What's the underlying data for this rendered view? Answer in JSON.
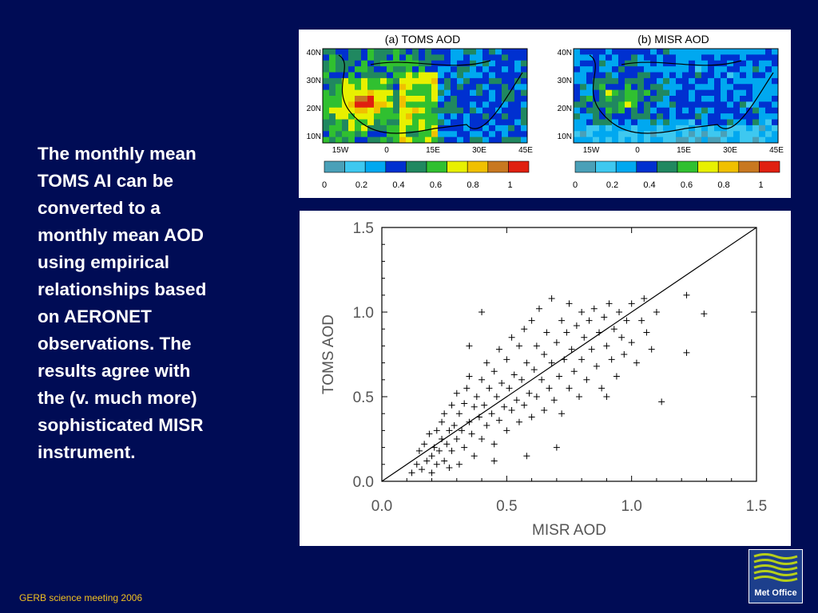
{
  "slide": {
    "body_lines": [
      "The monthly mean",
      "TOMS AI can be",
      "converted to a",
      "monthly mean AOD",
      "using empirical",
      "relationships based",
      "on AERONET",
      "observations. The",
      "results agree with",
      "the (v. much more)",
      "sophisticated MISR",
      "instrument."
    ],
    "footer": "GERB science meeting 2006",
    "logo_text": "Met Office",
    "colors": {
      "background": "#000c55",
      "footer": "#f0c020",
      "text": "#ffffff",
      "logo": "#1d3f8c",
      "logo_waves": "#b6cf1a"
    }
  },
  "maps": {
    "panels": [
      {
        "title": "(a)  TOMS  AOD"
      },
      {
        "title": "(b)  MISR  AOD"
      }
    ],
    "lat_labels": [
      "40N",
      "30N",
      "20N",
      "10N"
    ],
    "lon_labels": [
      "15W",
      "0",
      "15E",
      "30E",
      "45E"
    ],
    "colorbar_labels": [
      "0",
      "0.2",
      "0.4",
      "0.6",
      "0.8",
      "1"
    ],
    "colorbar_colors": [
      "#4aa0b8",
      "#3ec8f0",
      "#00a8f0",
      "#0030d0",
      "#208860",
      "#30c030",
      "#e8f000",
      "#f0c000",
      "#c87820",
      "#e02010"
    ]
  },
  "chart_data": {
    "type": "scatter",
    "xlabel": "MISR AOD",
    "ylabel": "TOMS AOD",
    "xlim": [
      0.0,
      1.5
    ],
    "ylim": [
      0.0,
      1.5
    ],
    "xticks": [
      "0.0",
      "0.5",
      "1.0",
      "1.5"
    ],
    "yticks": [
      "0.0",
      "0.5",
      "1.0",
      "1.5"
    ],
    "reference_line": "1:1",
    "marker": "+",
    "series": [
      {
        "points": [
          [
            0.12,
            0.05
          ],
          [
            0.14,
            0.1
          ],
          [
            0.15,
            0.18
          ],
          [
            0.16,
            0.07
          ],
          [
            0.17,
            0.22
          ],
          [
            0.18,
            0.12
          ],
          [
            0.19,
            0.28
          ],
          [
            0.2,
            0.15
          ],
          [
            0.2,
            0.05
          ],
          [
            0.21,
            0.2
          ],
          [
            0.22,
            0.3
          ],
          [
            0.22,
            0.1
          ],
          [
            0.23,
            0.18
          ],
          [
            0.24,
            0.25
          ],
          [
            0.24,
            0.35
          ],
          [
            0.25,
            0.12
          ],
          [
            0.25,
            0.4
          ],
          [
            0.26,
            0.22
          ],
          [
            0.27,
            0.3
          ],
          [
            0.27,
            0.08
          ],
          [
            0.28,
            0.45
          ],
          [
            0.28,
            0.18
          ],
          [
            0.29,
            0.33
          ],
          [
            0.3,
            0.25
          ],
          [
            0.3,
            0.52
          ],
          [
            0.31,
            0.4
          ],
          [
            0.31,
            0.1
          ],
          [
            0.32,
            0.3
          ],
          [
            0.33,
            0.46
          ],
          [
            0.33,
            0.2
          ],
          [
            0.34,
            0.55
          ],
          [
            0.35,
            0.35
          ],
          [
            0.35,
            0.62
          ],
          [
            0.36,
            0.28
          ],
          [
            0.37,
            0.44
          ],
          [
            0.37,
            0.15
          ],
          [
            0.38,
            0.5
          ],
          [
            0.39,
            0.38
          ],
          [
            0.4,
            0.6
          ],
          [
            0.4,
            0.25
          ],
          [
            0.41,
            0.45
          ],
          [
            0.42,
            0.7
          ],
          [
            0.42,
            0.33
          ],
          [
            0.43,
            0.55
          ],
          [
            0.44,
            0.4
          ],
          [
            0.45,
            0.65
          ],
          [
            0.45,
            0.22
          ],
          [
            0.46,
            0.5
          ],
          [
            0.47,
            0.78
          ],
          [
            0.47,
            0.36
          ],
          [
            0.48,
            0.58
          ],
          [
            0.49,
            0.44
          ],
          [
            0.5,
            0.72
          ],
          [
            0.5,
            0.3
          ],
          [
            0.51,
            0.55
          ],
          [
            0.52,
            0.85
          ],
          [
            0.52,
            0.42
          ],
          [
            0.53,
            0.63
          ],
          [
            0.54,
            0.48
          ],
          [
            0.55,
            0.8
          ],
          [
            0.55,
            0.35
          ],
          [
            0.56,
            0.6
          ],
          [
            0.57,
            0.9
          ],
          [
            0.57,
            0.45
          ],
          [
            0.58,
            0.7
          ],
          [
            0.59,
            0.52
          ],
          [
            0.6,
            0.95
          ],
          [
            0.6,
            0.38
          ],
          [
            0.61,
            0.66
          ],
          [
            0.62,
            0.8
          ],
          [
            0.62,
            0.5
          ],
          [
            0.63,
            1.02
          ],
          [
            0.64,
            0.6
          ],
          [
            0.65,
            0.75
          ],
          [
            0.65,
            0.42
          ],
          [
            0.66,
            0.88
          ],
          [
            0.67,
            0.55
          ],
          [
            0.68,
            1.08
          ],
          [
            0.68,
            0.7
          ],
          [
            0.69,
            0.48
          ],
          [
            0.7,
            0.82
          ],
          [
            0.71,
            0.62
          ],
          [
            0.72,
            0.95
          ],
          [
            0.72,
            0.4
          ],
          [
            0.73,
            0.72
          ],
          [
            0.74,
            0.88
          ],
          [
            0.75,
            1.05
          ],
          [
            0.75,
            0.55
          ],
          [
            0.76,
            0.78
          ],
          [
            0.77,
            0.65
          ],
          [
            0.78,
            0.92
          ],
          [
            0.79,
            0.5
          ],
          [
            0.8,
            1.0
          ],
          [
            0.8,
            0.72
          ],
          [
            0.81,
            0.85
          ],
          [
            0.82,
            0.6
          ],
          [
            0.83,
            0.95
          ],
          [
            0.84,
            0.78
          ],
          [
            0.85,
            1.02
          ],
          [
            0.86,
            0.68
          ],
          [
            0.87,
            0.88
          ],
          [
            0.88,
            0.55
          ],
          [
            0.89,
            0.97
          ],
          [
            0.9,
            0.8
          ],
          [
            0.91,
            1.05
          ],
          [
            0.92,
            0.72
          ],
          [
            0.93,
            0.9
          ],
          [
            0.94,
            0.62
          ],
          [
            0.95,
            1.0
          ],
          [
            0.96,
            0.85
          ],
          [
            0.97,
            0.75
          ],
          [
            0.98,
            0.95
          ],
          [
            1.0,
            1.05
          ],
          [
            1.0,
            0.82
          ],
          [
            1.02,
            0.7
          ],
          [
            1.04,
            0.95
          ],
          [
            1.05,
            1.08
          ],
          [
            1.06,
            0.88
          ],
          [
            1.08,
            0.78
          ],
          [
            1.1,
            1.0
          ],
          [
            1.12,
            0.47
          ],
          [
            1.22,
            1.1
          ],
          [
            1.22,
            0.76
          ],
          [
            1.29,
            0.99
          ],
          [
            0.4,
            1.0
          ],
          [
            0.58,
            0.15
          ],
          [
            0.7,
            0.2
          ],
          [
            0.45,
            0.12
          ],
          [
            0.9,
            0.5
          ],
          [
            0.35,
            0.8
          ]
        ]
      }
    ]
  }
}
